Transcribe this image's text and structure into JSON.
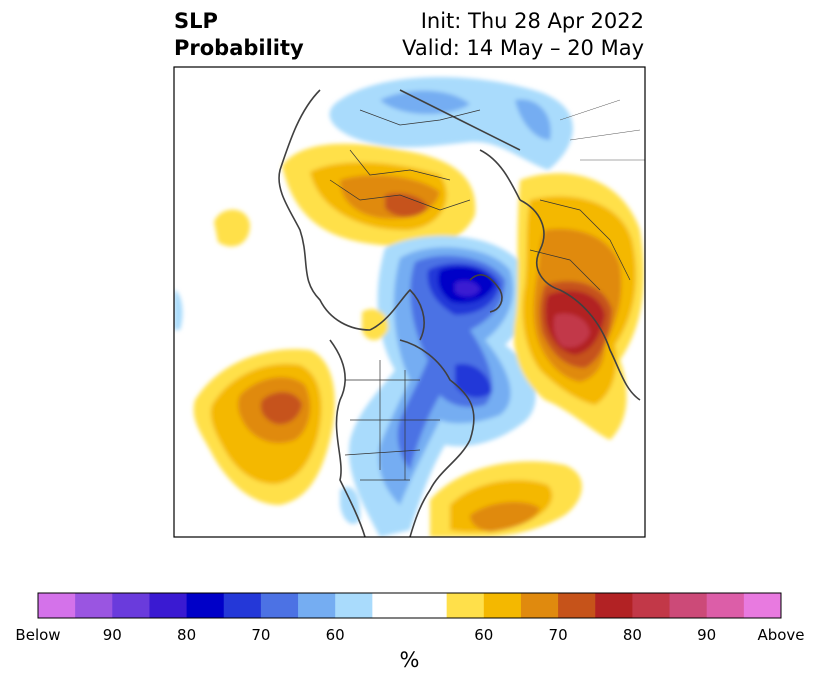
{
  "title": {
    "left_line1": "SLP",
    "left_line2": "Probability",
    "right_line1": "Init: Thu 28 Apr 2022",
    "right_line2": "Valid: 14 May – 20 May"
  },
  "colorbar": {
    "colors": [
      "#d472ea",
      "#9a55e1",
      "#6a3bdc",
      "#3a1ad2",
      "#0000c8",
      "#2438d8",
      "#4c72e4",
      "#75adf2",
      "#a9dbfc",
      "#ffffff",
      "#ffffff",
      "#ffe04a",
      "#f4b800",
      "#e08a0e",
      "#c6531a",
      "#b22224",
      "#c23848",
      "#cc4a78",
      "#dc5ea8",
      "#e87ae0"
    ],
    "labels": [
      "Below",
      "90",
      "80",
      "70",
      "60",
      "60",
      "70",
      "80",
      "90",
      "Above"
    ],
    "unit": "%"
  }
}
